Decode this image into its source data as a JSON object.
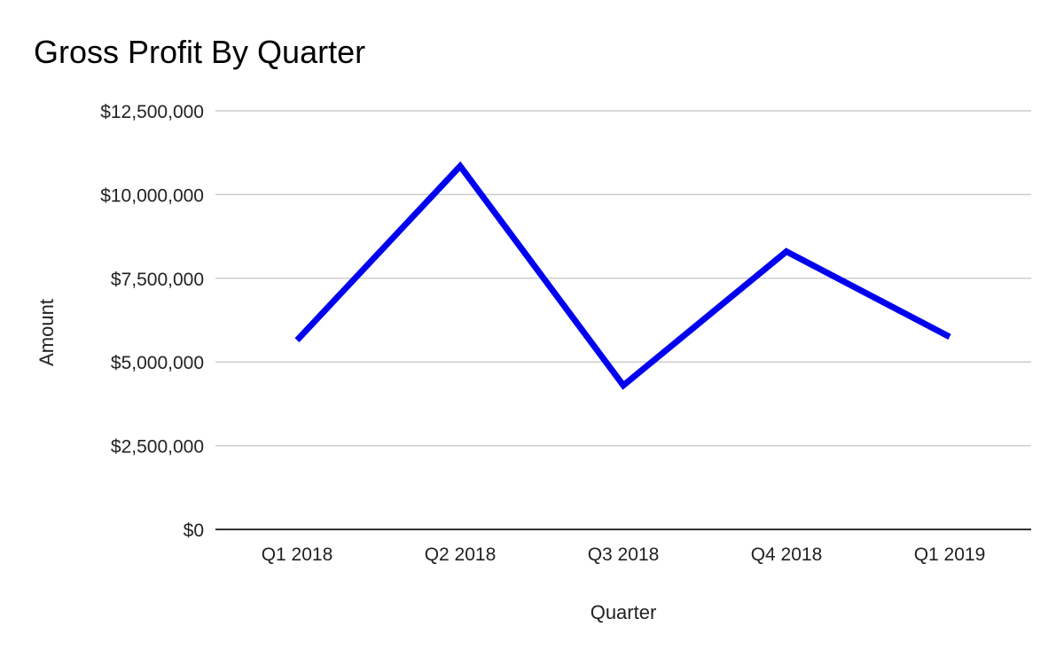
{
  "chart_data": {
    "type": "line",
    "title": "Gross Profit By Quarter",
    "xlabel": "Quarter",
    "ylabel": "Amount",
    "categories": [
      "Q1 2018",
      "Q2 2018",
      "Q3 2018",
      "Q4 2018",
      "Q1 2019"
    ],
    "series": [
      {
        "values": [
          5650000,
          10850000,
          4300000,
          8300000,
          5750000
        ],
        "color": "#0000ee"
      }
    ],
    "ylim": [
      0,
      12500000
    ],
    "yticks": [
      0,
      2500000,
      5000000,
      7500000,
      10000000,
      12500000
    ],
    "ytick_labels": [
      "$0",
      "$2,500,000",
      "$5,000,000",
      "$7,500,000",
      "$10,000,000",
      "$12,500,000"
    ],
    "grid": true,
    "legend": "none",
    "gridline_color": "#cccccc",
    "axis_color": "#333333"
  }
}
